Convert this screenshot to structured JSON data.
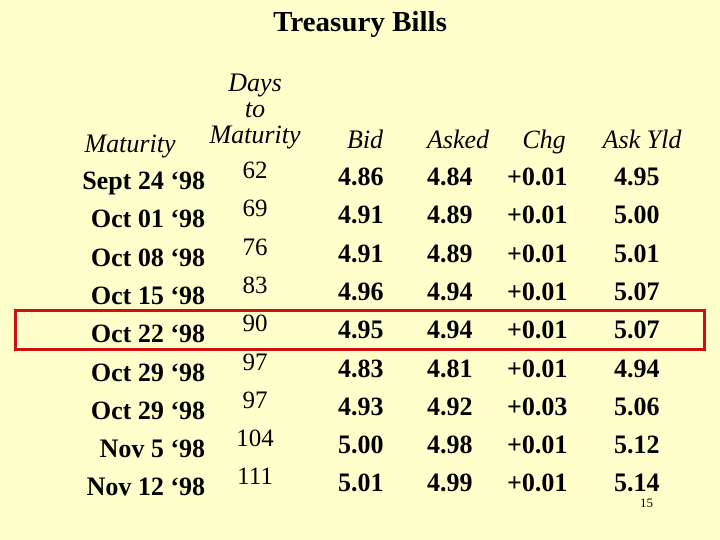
{
  "title": "Treasury Bills",
  "headers": {
    "maturity": "Maturity",
    "days_line1": "Days",
    "days_line2": "to",
    "days_line3": "Maturity",
    "bid": "Bid",
    "asked": "Asked",
    "chg": "Chg",
    "askyld": "Ask Yld"
  },
  "rows": [
    {
      "maturity": "Sept 24 ‘98",
      "days": "62",
      "bid": "4.86",
      "asked": "4.84",
      "chg": "+0.01",
      "askyld": "4.95"
    },
    {
      "maturity": "Oct 01 ‘98",
      "days": "69",
      "bid": "4.91",
      "asked": "4.89",
      "chg": "+0.01",
      "askyld": "5.00"
    },
    {
      "maturity": "Oct 08 ‘98",
      "days": "76",
      "bid": "4.91",
      "asked": "4.89",
      "chg": "+0.01",
      "askyld": "5.01"
    },
    {
      "maturity": "Oct 15 ‘98",
      "days": "83",
      "bid": "4.96",
      "asked": "4.94",
      "chg": "+0.01",
      "askyld": "5.07"
    },
    {
      "maturity": "Oct 22 ‘98",
      "days": "90",
      "bid": "4.95",
      "asked": "4.94",
      "chg": "+0.01",
      "askyld": "5.07"
    },
    {
      "maturity": "Oct 29 ‘98",
      "days": "97",
      "bid": "4.83",
      "asked": "4.81",
      "chg": "+0.01",
      "askyld": "4.94"
    },
    {
      "maturity": "Oct 29 ‘98",
      "days": "97",
      "bid": "4.93",
      "asked": "4.92",
      "chg": "+0.03",
      "askyld": "5.06"
    },
    {
      "maturity": "Nov 5 ‘98",
      "days": "104",
      "bid": "5.00",
      "asked": "4.98",
      "chg": "+0.01",
      "askyld": "5.12"
    },
    {
      "maturity": "Nov 12 ‘98",
      "days": "111",
      "bid": "5.01",
      "asked": "4.99",
      "chg": "+0.01",
      "askyld": "5.14"
    }
  ],
  "highlight": {
    "row_index": 4,
    "color": "#cc1111"
  },
  "page_number": "15"
}
